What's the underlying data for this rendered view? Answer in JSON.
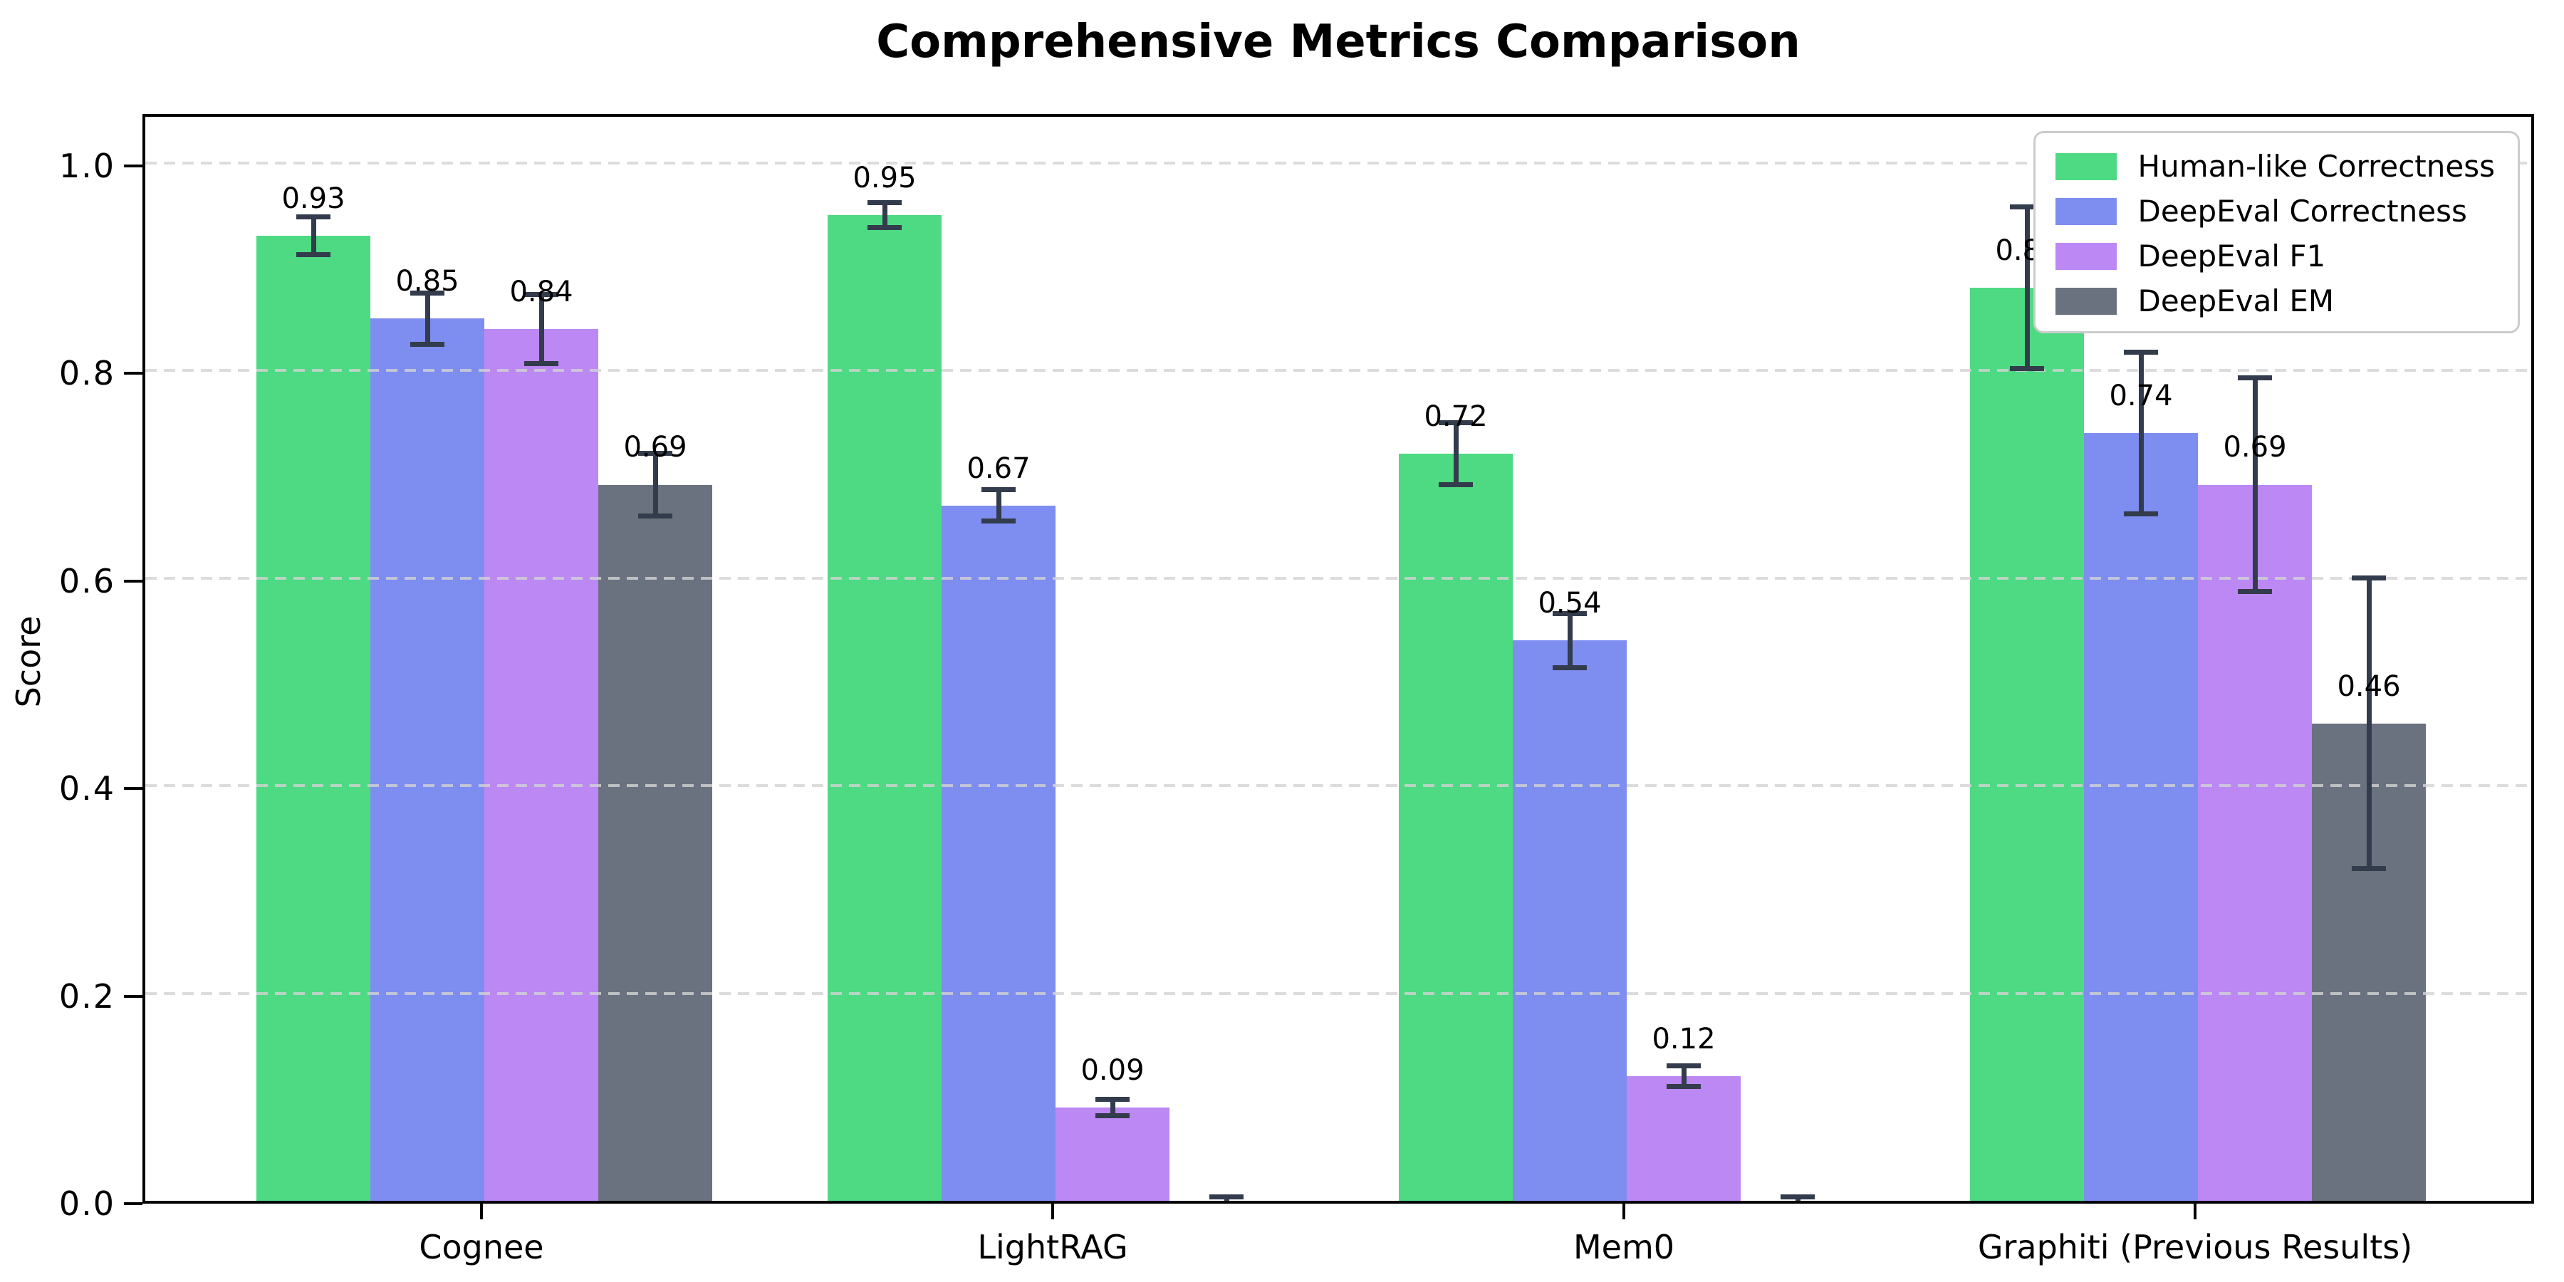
{
  "title": "Comprehensive Metrics Comparison",
  "ylabel": "Score",
  "chart_data": {
    "type": "bar",
    "title": "Comprehensive Metrics Comparison",
    "xlabel": "",
    "ylabel": "Score",
    "categories": [
      "Cognee",
      "LightRAG",
      "Mem0",
      "Graphiti (Previous Results)"
    ],
    "series": [
      {
        "name": "Human-like Correctness",
        "color": "#4dda82",
        "values": [
          0.93,
          0.95,
          0.72,
          0.88
        ],
        "errors": [
          0.018,
          0.012,
          0.03,
          0.078
        ],
        "labels": [
          "0.93",
          "0.95",
          "0.72",
          "0.88"
        ]
      },
      {
        "name": "DeepEval Correctness",
        "color": "#7e8df0",
        "values": [
          0.85,
          0.67,
          0.54,
          0.74
        ],
        "errors": [
          0.025,
          0.015,
          0.026,
          0.078
        ],
        "labels": [
          "0.85",
          "0.67",
          "0.54",
          "0.74"
        ]
      },
      {
        "name": "DeepEval F1",
        "color": "#bc88f4",
        "values": [
          0.84,
          0.09,
          0.12,
          0.69
        ],
        "errors": [
          0.033,
          0.008,
          0.01,
          0.103
        ],
        "labels": [
          "0.84",
          "0.09",
          "0.12",
          "0.69"
        ]
      },
      {
        "name": "DeepEval EM",
        "color": "#6a7280",
        "values": [
          0.69,
          0.0,
          0.0,
          0.46
        ],
        "errors": [
          0.03,
          0.004,
          0.004,
          0.14
        ],
        "labels": [
          "0.69",
          null,
          null,
          "0.46"
        ]
      }
    ],
    "yticks": [
      0.0,
      0.2,
      0.4,
      0.6,
      0.8,
      1.0
    ],
    "ytick_labels": [
      "0.0",
      "0.2",
      "0.4",
      "0.6",
      "0.8",
      "1.0"
    ],
    "ylim": [
      0,
      1.05
    ],
    "grid": "horizontal-dashed",
    "legend_position": "upper right",
    "error_bar_color": "#333c4c",
    "grid_color": "#d3d3d3"
  }
}
